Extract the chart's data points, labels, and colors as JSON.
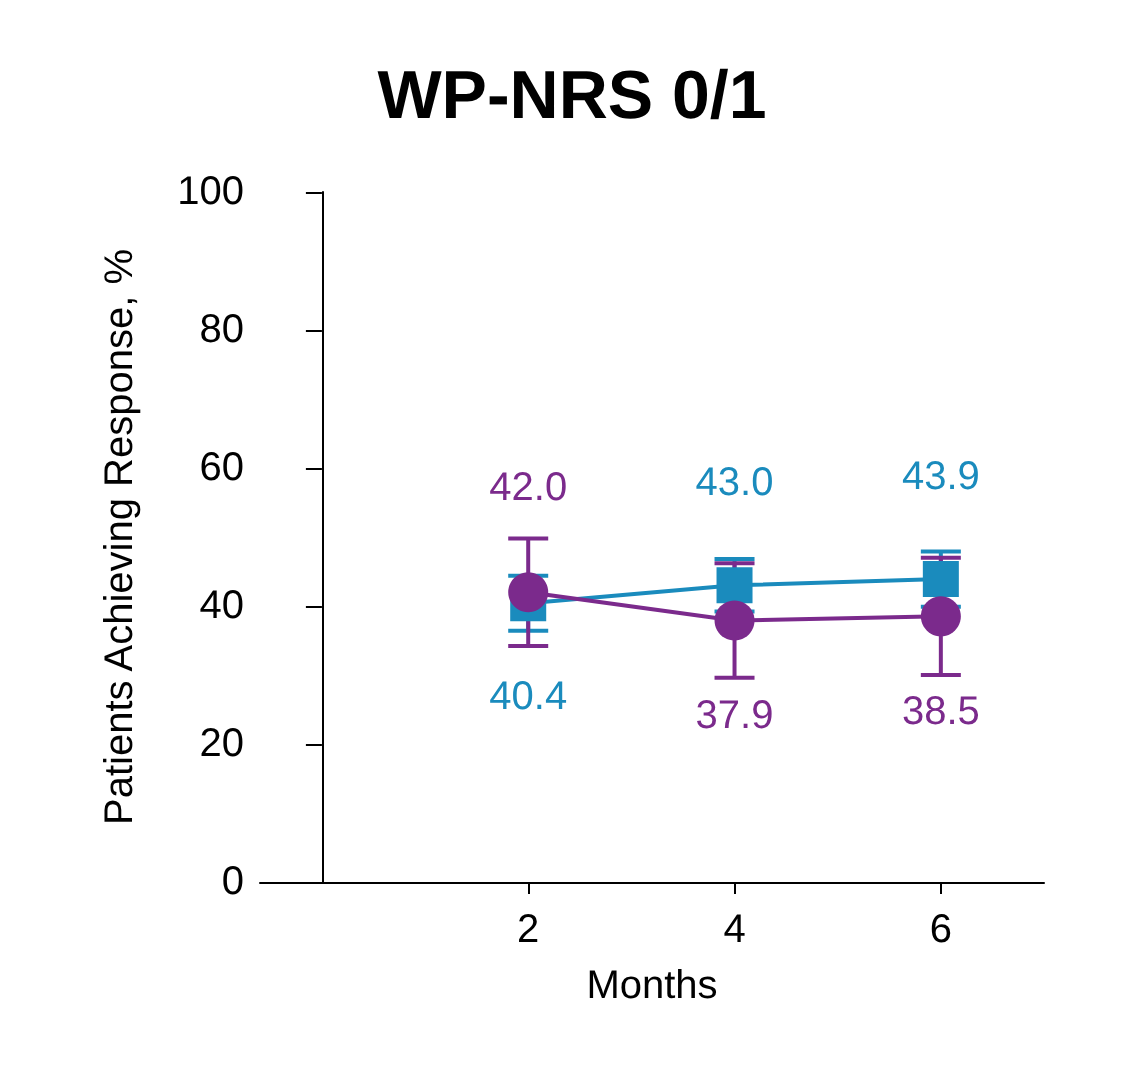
{
  "chart_data": {
    "type": "line",
    "title": "WP-NRS 0/1",
    "xlabel": "Months",
    "ylabel": "Patients Achieving Response, %",
    "x": [
      2,
      4,
      6
    ],
    "xlim": [
      -0.6,
      7
    ],
    "xticks": [
      2,
      4,
      6
    ],
    "ylim": [
      0,
      100
    ],
    "yticks": [
      0,
      20,
      40,
      60,
      80,
      100
    ],
    "series": [
      {
        "color": "#1a8bbd",
        "marker": "square",
        "values": [
          40.4,
          43.0,
          43.9
        ],
        "value_labels": [
          "40.4",
          "43.0",
          "43.9"
        ],
        "errors": [
          4,
          3.8,
          4
        ]
      },
      {
        "color": "#7b2a8c",
        "marker": "circle",
        "values": [
          42.0,
          37.9,
          38.5
        ],
        "value_labels": [
          "42.0",
          "37.9",
          "38.5"
        ],
        "errors": [
          7.8,
          8.3,
          8.5
        ]
      }
    ],
    "grid": false
  }
}
